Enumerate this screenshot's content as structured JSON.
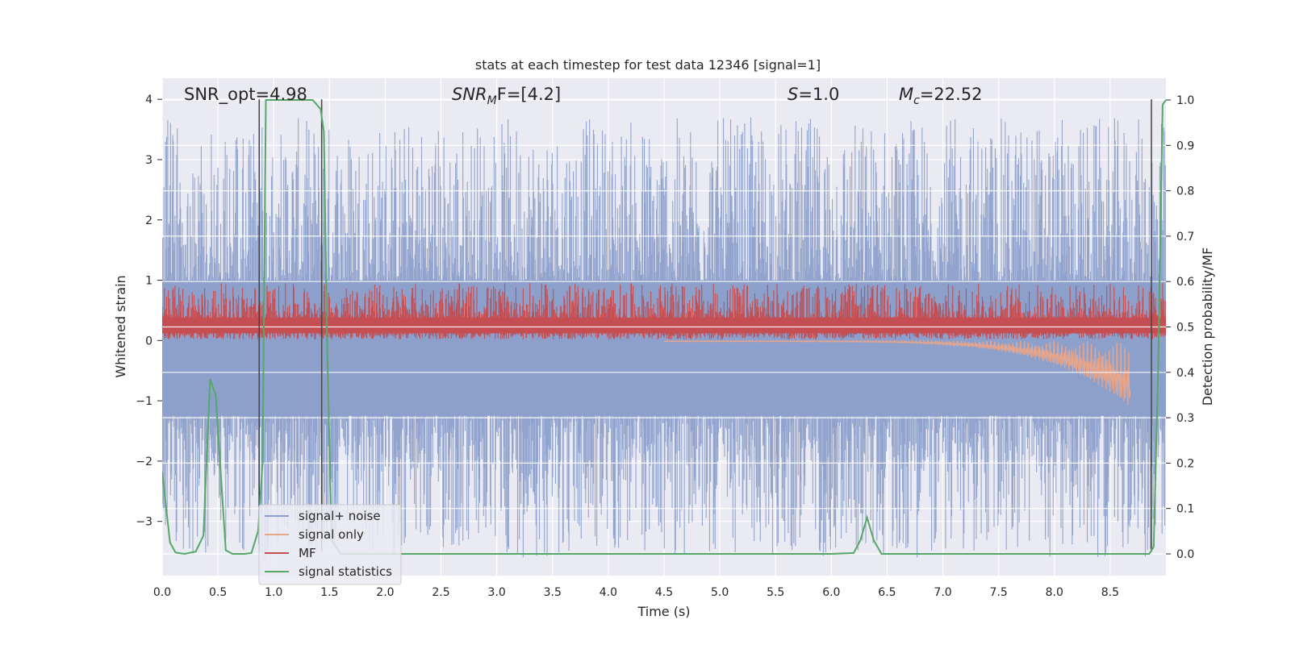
{
  "chart_data": {
    "type": "line",
    "title": "stats at each timestep for test data 12346 [signal=1]",
    "xlabel": "Time (s)",
    "ylabel_left": "Whitened strain",
    "ylabel_right": "Detection probability/MF",
    "xlim": [
      0.0,
      9.0
    ],
    "ylim_left": [
      -3.9,
      4.35
    ],
    "ylim_right": [
      -0.048,
      1.048
    ],
    "xticks": [
      "0.0",
      "0.5",
      "1.0",
      "1.5",
      "2.0",
      "2.5",
      "3.0",
      "3.5",
      "4.0",
      "4.5",
      "5.0",
      "5.5",
      "6.0",
      "6.5",
      "7.0",
      "7.5",
      "8.0",
      "8.5"
    ],
    "yticks_left": [
      "4",
      "3",
      "2",
      "1",
      "0",
      "−1",
      "−2",
      "−3"
    ],
    "yticks_right": [
      "1.0",
      "0.9",
      "0.8",
      "0.7",
      "0.6",
      "0.5",
      "0.4",
      "0.3",
      "0.2",
      "0.1",
      "0.0"
    ],
    "annotations": {
      "snr_opt": "SNR_opt=4.98",
      "snr_mf_main": "SNR",
      "snr_mf_sub": "M",
      "snr_mf_rest": "F=[4.2]",
      "s_var": "S",
      "s_rest": "=1.0",
      "mc_var": "M",
      "mc_sub": "c",
      "mc_rest": "=22.52"
    },
    "vlines": [
      0.87,
      1.43,
      8.87
    ],
    "colors": {
      "signal_noise": "#8da0cb",
      "signal_only": "#e8a58a",
      "mf": "#c44e52",
      "stats": "#55a868",
      "vline": "#444444",
      "background": "#eaeaf2"
    },
    "legend": {
      "location": "lower-left",
      "entries": [
        "signal+ noise",
        "signal only",
        "MF",
        "signal statistics"
      ]
    },
    "series": [
      {
        "name": "signal statistics",
        "axis": "right",
        "x": [
          0.0,
          0.07,
          0.12,
          0.2,
          0.3,
          0.37,
          0.43,
          0.48,
          0.57,
          0.63,
          0.74,
          0.8,
          0.86,
          0.9,
          0.93,
          1.0,
          1.2,
          1.35,
          1.42,
          1.45,
          1.48,
          1.52,
          1.6,
          2.0,
          3.0,
          4.0,
          5.0,
          6.0,
          6.2,
          6.26,
          6.32,
          6.38,
          6.45,
          6.6,
          7.0,
          8.0,
          8.5,
          8.85,
          8.89,
          8.93,
          8.97,
          9.0
        ],
        "y": [
          0.18,
          0.025,
          0.003,
          0.0,
          0.005,
          0.04,
          0.385,
          0.35,
          0.008,
          0.0,
          0.0,
          0.002,
          0.05,
          0.2,
          1.0,
          1.0,
          1.0,
          1.0,
          0.98,
          0.93,
          0.45,
          0.03,
          0.0,
          0.0,
          0.0,
          0.0,
          0.0,
          0.0,
          0.002,
          0.03,
          0.08,
          0.03,
          0.0,
          0.0,
          0.0,
          0.0,
          0.0,
          0.0,
          0.015,
          0.4,
          0.99,
          1.0
        ]
      },
      {
        "name": "MF",
        "axis": "left",
        "description_range": [
          0.0,
          0.95
        ]
      },
      {
        "name": "signal+ noise",
        "axis": "left",
        "description_range": [
          -3.6,
          4.0
        ]
      },
      {
        "name": "signal only",
        "axis": "left",
        "description_range": [
          -1.1,
          0.0
        ]
      }
    ]
  }
}
